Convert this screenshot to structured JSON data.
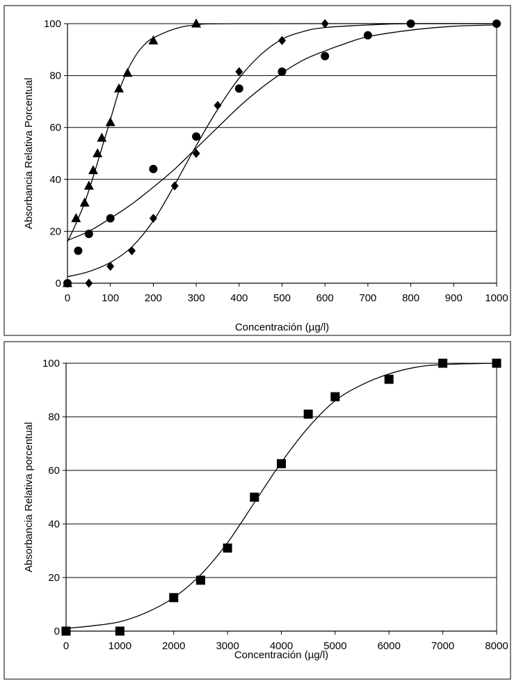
{
  "chart_data": [
    {
      "type": "scatter",
      "title": "",
      "xlabel": "Concentración  (µg/l)",
      "ylabel": "Absorbancia Relativa Porcentual",
      "xlim": [
        0,
        1000
      ],
      "ylim": [
        0,
        100
      ],
      "xticks": [
        0,
        100,
        200,
        300,
        400,
        500,
        600,
        700,
        800,
        900,
        1000
      ],
      "yticks": [
        0,
        20,
        40,
        60,
        80,
        100
      ],
      "grid": "horizontal",
      "legend": "none",
      "series": [
        {
          "marker": "triangle",
          "x": [
            0,
            20,
            40,
            50,
            60,
            70,
            80,
            100,
            120,
            140,
            200,
            300
          ],
          "y": [
            0,
            25,
            31,
            37.5,
            43.5,
            50,
            56,
            62,
            75,
            81,
            93.5,
            100
          ],
          "fit_points": [
            [
              0,
              16
            ],
            [
              20,
              23
            ],
            [
              40,
              31
            ],
            [
              60,
              41
            ],
            [
              80,
              52
            ],
            [
              100,
              63
            ],
            [
              120,
              74
            ],
            [
              140,
              82
            ],
            [
              160,
              88
            ],
            [
              180,
              92
            ],
            [
              200,
              94.5
            ],
            [
              250,
              98
            ],
            [
              300,
              99.5
            ],
            [
              400,
              100
            ],
            [
              1000,
              100
            ]
          ]
        },
        {
          "marker": "circle",
          "x": [
            0,
            25,
            50,
            100,
            200,
            300,
            400,
            500,
            600,
            700,
            800,
            1000
          ],
          "y": [
            0,
            12.5,
            19,
            25,
            44,
            56.5,
            75,
            81.5,
            87.5,
            95.5,
            100,
            100
          ],
          "fit_points": [
            [
              0,
              16.5
            ],
            [
              50,
              20
            ],
            [
              100,
              25
            ],
            [
              150,
              30.5
            ],
            [
              200,
              37
            ],
            [
              250,
              44
            ],
            [
              300,
              52
            ],
            [
              350,
              60
            ],
            [
              400,
              68
            ],
            [
              450,
              75
            ],
            [
              500,
              81
            ],
            [
              550,
              86
            ],
            [
              600,
              89.5
            ],
            [
              650,
              92.5
            ],
            [
              700,
              95
            ],
            [
              800,
              97.5
            ],
            [
              900,
              99
            ],
            [
              1000,
              99.5
            ]
          ]
        },
        {
          "marker": "diamond",
          "x": [
            0,
            50,
            100,
            150,
            200,
            250,
            300,
            350,
            400,
            500,
            600
          ],
          "y": [
            0,
            0,
            6.5,
            12.5,
            25,
            37.5,
            50,
            68.5,
            81.5,
            93.5,
            100
          ],
          "fit_points": [
            [
              0,
              2.5
            ],
            [
              50,
              4.5
            ],
            [
              100,
              8
            ],
            [
              150,
              14
            ],
            [
              200,
              24
            ],
            [
              250,
              38
            ],
            [
              300,
              53
            ],
            [
              350,
              67
            ],
            [
              400,
              79
            ],
            [
              450,
              88
            ],
            [
              500,
              94
            ],
            [
              550,
              97
            ],
            [
              600,
              98.5
            ],
            [
              700,
              99.5
            ],
            [
              800,
              100
            ],
            [
              1000,
              100
            ]
          ]
        }
      ]
    },
    {
      "type": "scatter",
      "title": "",
      "xlabel": "Concentración  (µg/l)",
      "ylabel": "Absorbancia Relativa porcentual",
      "xlim": [
        0,
        8000
      ],
      "ylim": [
        0,
        100
      ],
      "xticks": [
        0,
        1000,
        2000,
        3000,
        4000,
        5000,
        6000,
        7000,
        8000
      ],
      "yticks": [
        0,
        20,
        40,
        60,
        80,
        100
      ],
      "grid": "horizontal",
      "legend": "none",
      "series": [
        {
          "marker": "square",
          "x": [
            0,
            1000,
            2000,
            2500,
            3000,
            3500,
            4000,
            4500,
            5000,
            6000,
            7000,
            8000
          ],
          "y": [
            0,
            0,
            12.5,
            19,
            31,
            50,
            62.5,
            81,
            87.5,
            94,
            100,
            100
          ],
          "fit_points": [
            [
              0,
              1
            ],
            [
              500,
              2
            ],
            [
              1000,
              3.5
            ],
            [
              1500,
              7
            ],
            [
              2000,
              12.5
            ],
            [
              2500,
              21
            ],
            [
              3000,
              33
            ],
            [
              3500,
              48
            ],
            [
              4000,
              63
            ],
            [
              4500,
              76
            ],
            [
              5000,
              86
            ],
            [
              5500,
              92
            ],
            [
              6000,
              96
            ],
            [
              6500,
              98.5
            ],
            [
              7000,
              99.5
            ],
            [
              8000,
              100
            ]
          ]
        }
      ]
    }
  ]
}
